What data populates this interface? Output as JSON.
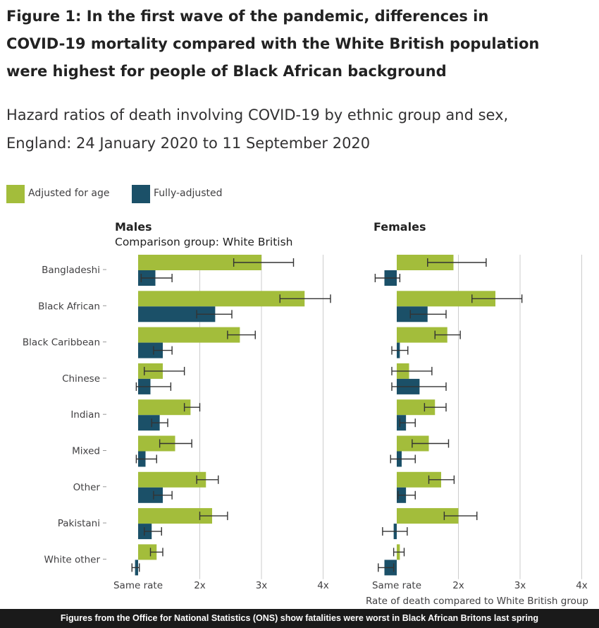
{
  "figure": {
    "title": "Figure 1: In the first wave of the pandemic, differences in COVID-19 mortality compared with the White British population were highest for people of Black African background",
    "subtitle": "Hazard ratios of death involving COVID-19 by ethnic group and sex, England: 24 January 2020 to 11 September 2020",
    "caption": "Figures from the Office for National Statistics (ONS) show fatalities were worst in Black African Britons last spring"
  },
  "colors": {
    "adjusted_for_age": "#a3bd3b",
    "fully_adjusted": "#1b5068",
    "gridline": "#cccccc",
    "text": "#414042"
  },
  "chart_data": {
    "type": "bar",
    "orientation": "horizontal",
    "categories": [
      "Bangladeshi",
      "Black African",
      "Black Caribbean",
      "Chinese",
      "Indian",
      "Mixed",
      "Other",
      "Pakistani",
      "White other"
    ],
    "legend": [
      "Adjusted for age",
      "Fully-adjusted"
    ],
    "legend_position": "top-left",
    "xlabel": "Rate of death compared to White British group",
    "x_ticks": [
      1,
      2,
      3,
      4
    ],
    "x_tick_labels": [
      "Same rate",
      "2x",
      "3x",
      "4x"
    ],
    "xlim": [
      1,
      4
    ],
    "grid": true,
    "panels": [
      {
        "name": "Males",
        "subtitle": "Comparison group: White British",
        "series": [
          {
            "name": "Adjusted for age",
            "values": [
              3.0,
              3.7,
              2.65,
              1.4,
              1.85,
              1.6,
              2.1,
              2.2,
              1.3
            ],
            "ci_low": [
              2.55,
              3.3,
              2.45,
              1.1,
              1.75,
              1.35,
              1.95,
              2.0,
              1.2
            ],
            "ci_high": [
              3.52,
              4.12,
              2.9,
              1.75,
              2.0,
              1.87,
              2.3,
              2.45,
              1.4
            ]
          },
          {
            "name": "Fully-adjusted",
            "values": [
              1.28,
              2.25,
              1.4,
              1.2,
              1.35,
              1.12,
              1.4,
              1.22,
              0.95
            ],
            "ci_low": [
              1.05,
              1.95,
              1.25,
              0.97,
              1.22,
              0.97,
              1.25,
              1.1,
              0.9
            ],
            "ci_high": [
              1.55,
              2.52,
              1.55,
              1.53,
              1.48,
              1.3,
              1.55,
              1.38,
              1.02
            ]
          }
        ]
      },
      {
        "name": "Females",
        "subtitle": "",
        "series": [
          {
            "name": "Adjusted for age",
            "values": [
              1.92,
              2.6,
              1.82,
              1.2,
              1.62,
              1.52,
              1.72,
              2.0,
              1.05
            ],
            "ci_low": [
              1.5,
              2.22,
              1.62,
              0.92,
              1.45,
              1.25,
              1.52,
              1.77,
              0.95
            ],
            "ci_high": [
              2.45,
              3.03,
              2.03,
              1.57,
              1.8,
              1.84,
              1.93,
              2.3,
              1.12
            ]
          },
          {
            "name": "Fully-adjusted",
            "values": [
              0.8,
              1.5,
              1.05,
              1.37,
              1.15,
              1.08,
              1.15,
              0.95,
              0.8
            ],
            "ci_low": [
              0.65,
              1.22,
              0.92,
              0.92,
              1.05,
              0.9,
              1.02,
              0.77,
              0.7
            ],
            "ci_high": [
              1.05,
              1.8,
              1.18,
              1.8,
              1.3,
              1.3,
              1.3,
              1.17,
              0.95
            ]
          }
        ]
      }
    ]
  }
}
